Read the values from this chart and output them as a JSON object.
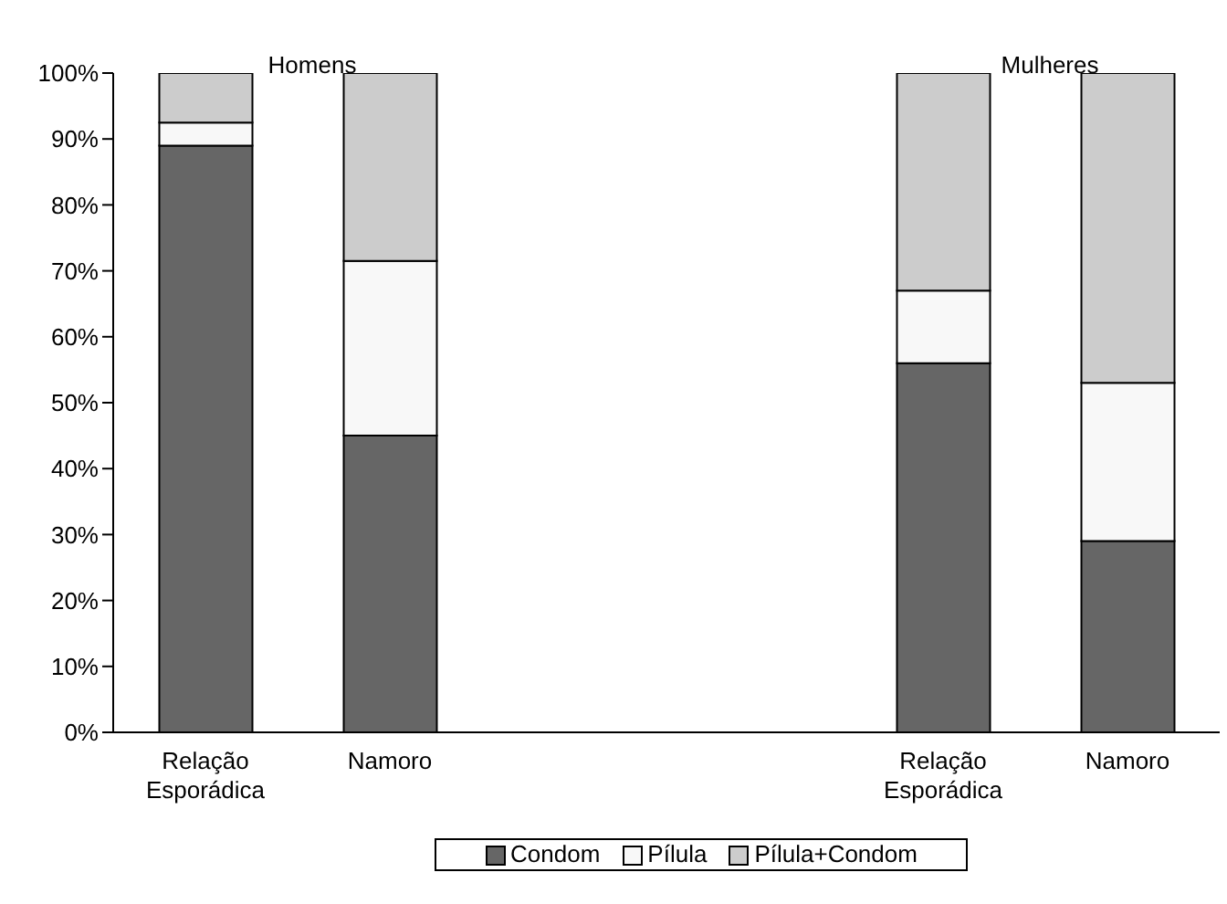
{
  "chart_data": {
    "type": "bar",
    "stacked": true,
    "categories": [
      "Relação Esporádica",
      "Namoro",
      null,
      null,
      "Relação Esporádica",
      "Namoro"
    ],
    "series": [
      {
        "name": "Condom",
        "color": "#666666",
        "values": [
          89,
          45,
          null,
          null,
          56,
          29
        ]
      },
      {
        "name": "Pílula",
        "color": "#f8f8f8",
        "values": [
          3.5,
          26.5,
          null,
          null,
          11,
          24
        ]
      },
      {
        "name": "Pílula+Condom",
        "color": "#cccccc",
        "values": [
          7.5,
          28.5,
          null,
          null,
          33,
          47
        ]
      }
    ],
    "ylim": [
      0,
      100
    ],
    "yticks": [
      {
        "value": 0,
        "label": "0%"
      },
      {
        "value": 10,
        "label": "10%"
      },
      {
        "value": 20,
        "label": "20%"
      },
      {
        "value": 30,
        "label": "30%"
      },
      {
        "value": 40,
        "label": "40%"
      },
      {
        "value": 50,
        "label": "50%"
      },
      {
        "value": 60,
        "label": "60%"
      },
      {
        "value": 70,
        "label": "70%"
      },
      {
        "value": 80,
        "label": "80%"
      },
      {
        "value": 90,
        "label": "90%"
      },
      {
        "value": 100,
        "label": "100%"
      }
    ],
    "annotations": [
      "Homens",
      "Mulheres"
    ],
    "legend": "bottom",
    "grid": false
  }
}
